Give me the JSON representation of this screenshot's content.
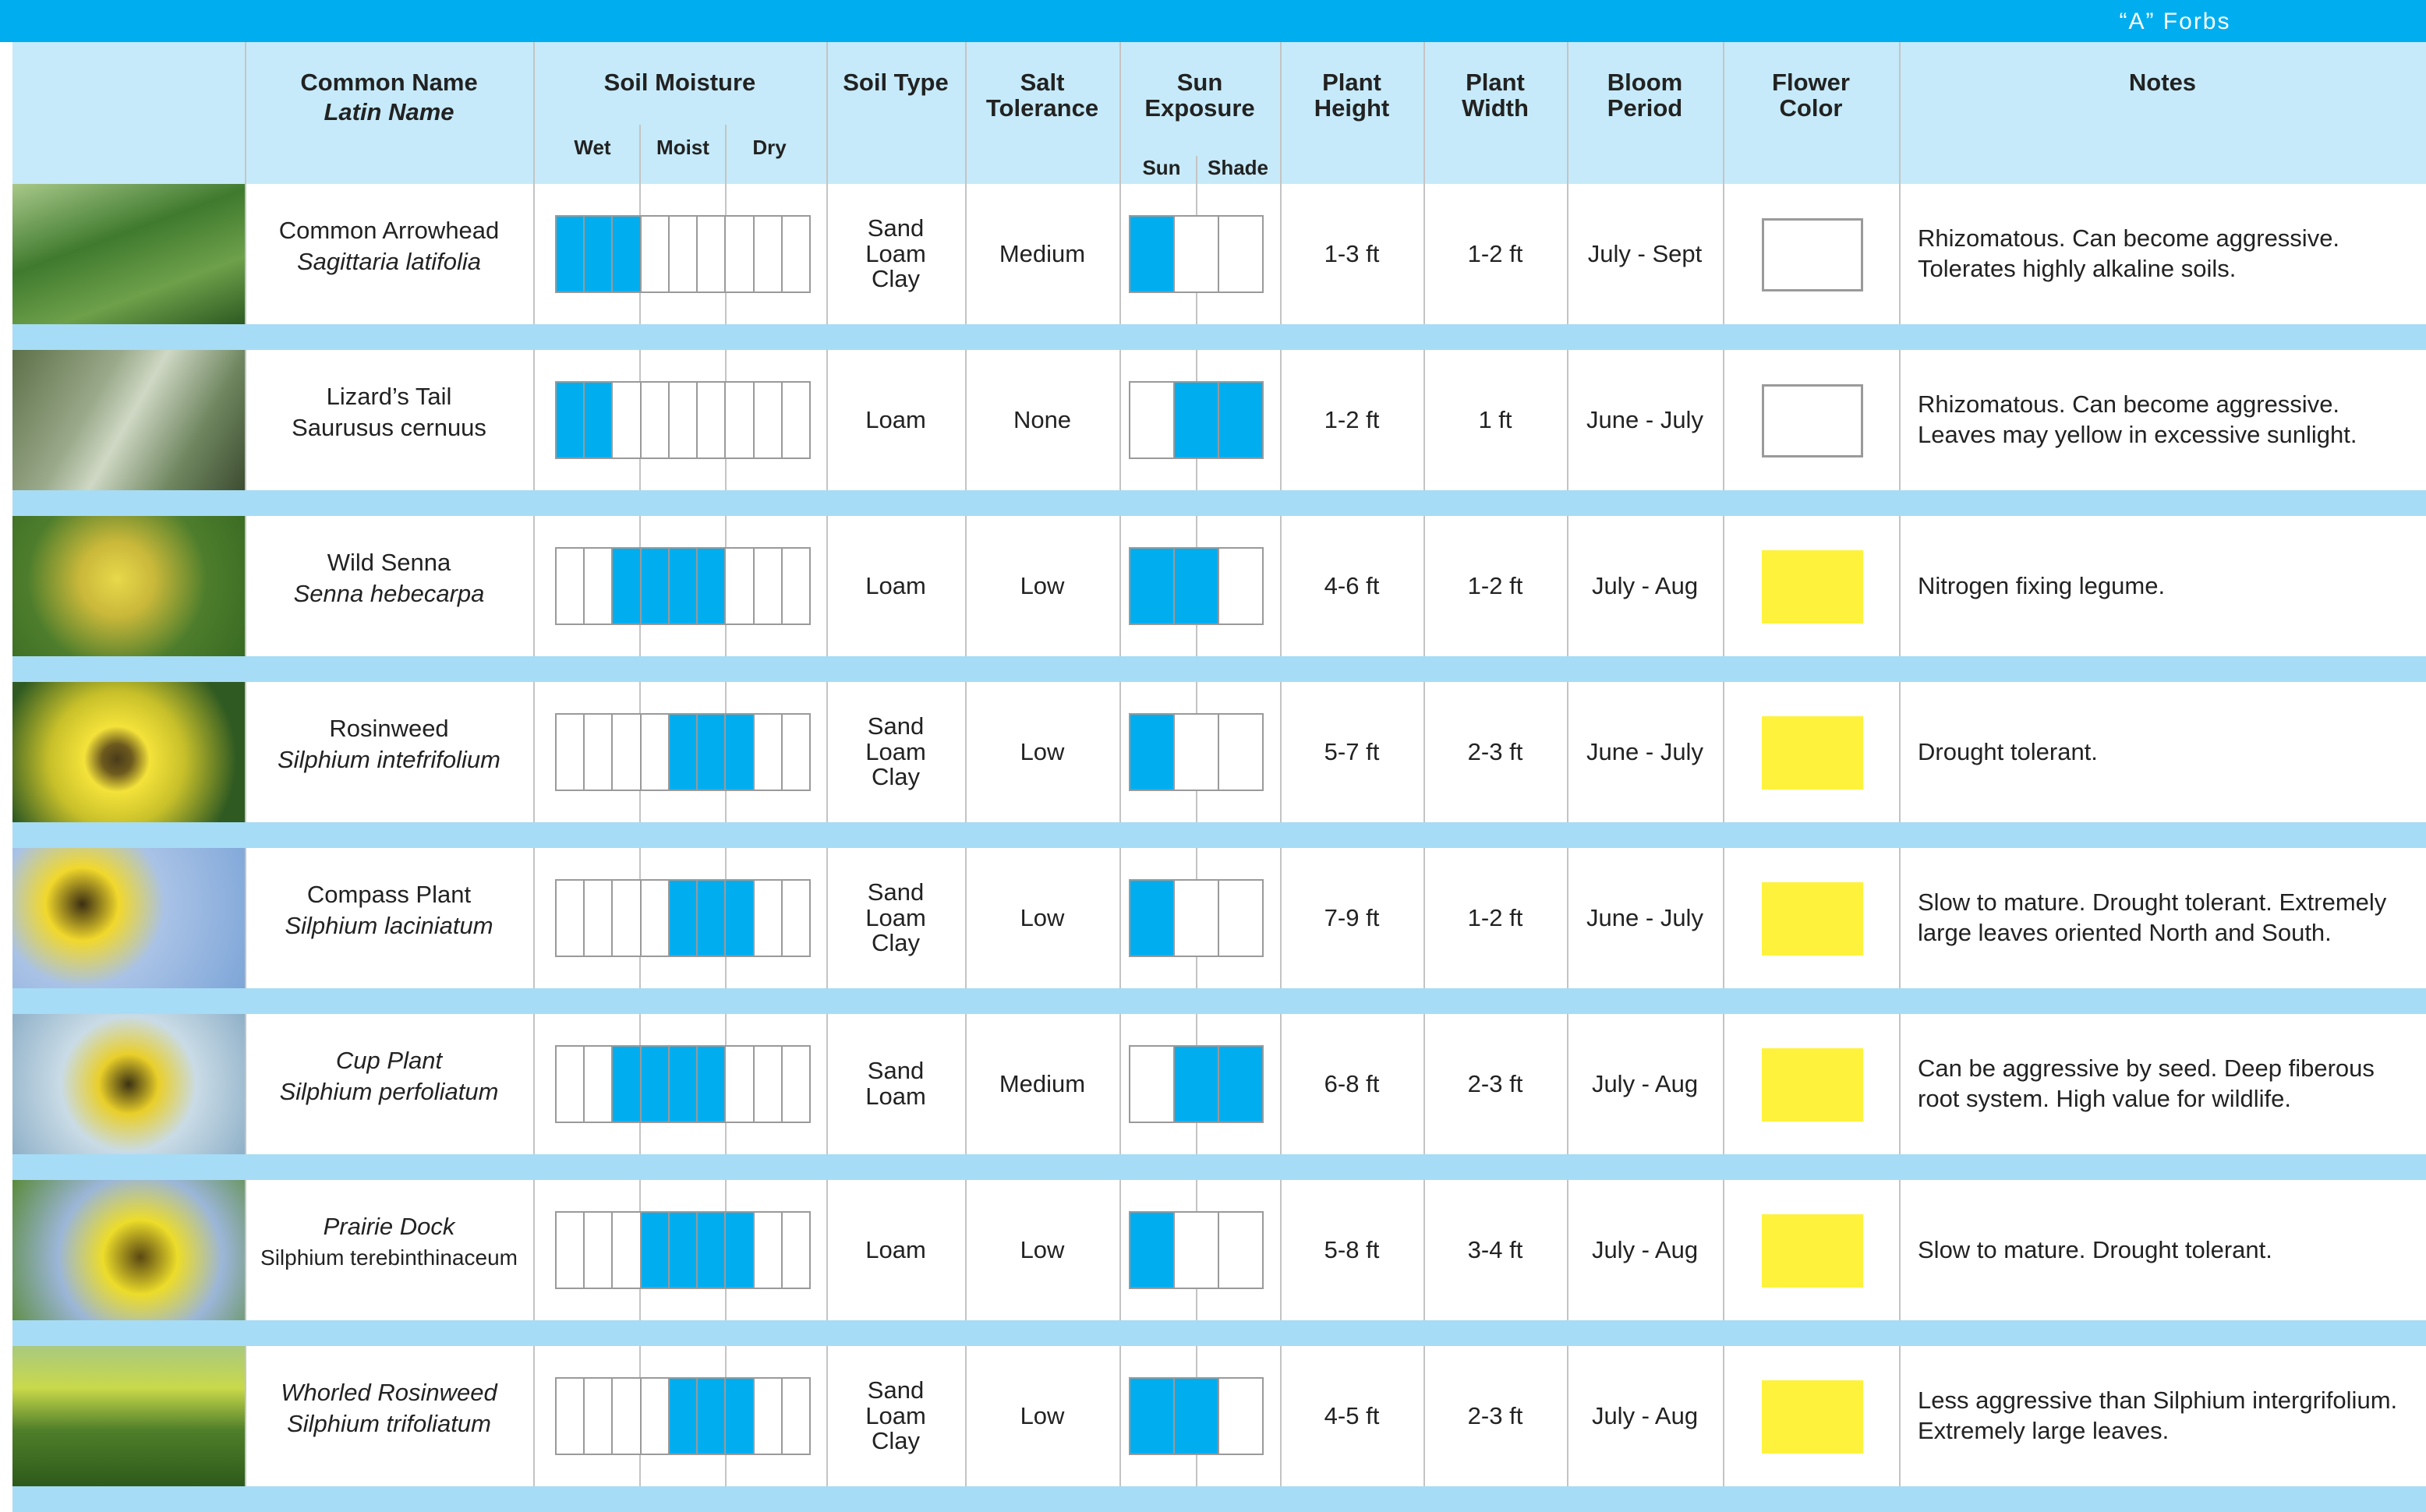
{
  "header": {
    "title": "“A” Forbs"
  },
  "columns": {
    "common_name": "Common Name",
    "latin_name": "Latin Name",
    "soil_moisture": "Soil Moisture",
    "moisture_levels": [
      "Wet",
      "Moist",
      "Dry"
    ],
    "soil_type": "Soil Type",
    "salt_tolerance": "Salt\nTolerance",
    "sun_exposure": "Sun\nExposure",
    "sun_levels": [
      "Sun",
      "Shade"
    ],
    "plant_height": "Plant\nHeight",
    "plant_width": "Plant\nWidth",
    "bloom_period": "Bloom\nPeriod",
    "flower_color": "Flower\nColor",
    "notes": "Notes"
  },
  "rows": [
    {
      "common_name": "Common Arrowhead",
      "latin_name": "Sagittaria latifolia",
      "common_italic": false,
      "latin_italic": true,
      "soil_moisture": [
        1,
        1,
        1,
        0,
        0,
        0,
        0,
        0,
        0
      ],
      "soil_type": "Sand\nLoam\nClay",
      "salt_tolerance": "Medium",
      "sun_exposure": [
        1,
        0,
        0
      ],
      "plant_height": "1-3 ft",
      "plant_width": "1-2 ft",
      "bloom_period": "July - Sept",
      "flower_color": "#ffffff",
      "notes": "Rhizomatous. Can become aggressive. Tolerates highly alkaline soils."
    },
    {
      "common_name": "Lizard’s Tail",
      "latin_name": "Saurusus cernuus",
      "common_italic": false,
      "latin_italic": false,
      "soil_moisture": [
        1,
        1,
        0,
        0,
        0,
        0,
        0,
        0,
        0
      ],
      "soil_type": "Loam",
      "salt_tolerance": "None",
      "sun_exposure": [
        0,
        1,
        1
      ],
      "plant_height": "1-2 ft",
      "plant_width": "1 ft",
      "bloom_period": "June - July",
      "flower_color": "#ffffff",
      "notes": "Rhizomatous. Can become aggressive. Leaves may yellow in excessive sunlight."
    },
    {
      "common_name": "Wild Senna",
      "latin_name": "Senna hebecarpa",
      "common_italic": false,
      "latin_italic": true,
      "soil_moisture": [
        0,
        0,
        1,
        1,
        1,
        1,
        0,
        0,
        0
      ],
      "soil_type": "Loam",
      "salt_tolerance": "Low",
      "sun_exposure": [
        1,
        1,
        0
      ],
      "plant_height": "4-6 ft",
      "plant_width": "1-2 ft",
      "bloom_period": "July - Aug",
      "flower_color": "#fff23c",
      "notes": "Nitrogen fixing legume."
    },
    {
      "common_name": "Rosinweed",
      "latin_name": "Silphium intefrifolium",
      "common_italic": false,
      "latin_italic": true,
      "soil_moisture": [
        0,
        0,
        0,
        0,
        1,
        1,
        1,
        0,
        0
      ],
      "soil_type": "Sand\nLoam\nClay",
      "salt_tolerance": "Low",
      "sun_exposure": [
        1,
        0,
        0
      ],
      "plant_height": "5-7 ft",
      "plant_width": "2-3 ft",
      "bloom_period": "June - July",
      "flower_color": "#fff23c",
      "notes": "Drought tolerant."
    },
    {
      "common_name": "Compass Plant",
      "latin_name": "Silphium laciniatum",
      "common_italic": false,
      "latin_italic": true,
      "soil_moisture": [
        0,
        0,
        0,
        0,
        1,
        1,
        1,
        0,
        0
      ],
      "soil_type": "Sand\nLoam\nClay",
      "salt_tolerance": "Low",
      "sun_exposure": [
        1,
        0,
        0
      ],
      "plant_height": "7-9 ft",
      "plant_width": "1-2 ft",
      "bloom_period": "June - July",
      "flower_color": "#fff23c",
      "notes": "Slow to mature. Drought tolerant. Extremely large leaves oriented North and South."
    },
    {
      "common_name": "Cup Plant",
      "latin_name": "Silphium perfoliatum",
      "common_italic": true,
      "latin_italic": true,
      "soil_moisture": [
        0,
        0,
        1,
        1,
        1,
        1,
        0,
        0,
        0
      ],
      "soil_type": "Sand\nLoam",
      "salt_tolerance": "Medium",
      "sun_exposure": [
        0,
        1,
        1
      ],
      "plant_height": "6-8 ft",
      "plant_width": "2-3 ft",
      "bloom_period": "July - Aug",
      "flower_color": "#fff23c",
      "notes": "Can be aggressive by seed. Deep fiberous root system. High value for wildlife."
    },
    {
      "common_name": "Prairie Dock",
      "latin_name": "Silphium terebinthinaceum",
      "common_italic": true,
      "latin_italic": false,
      "soil_moisture": [
        0,
        0,
        0,
        1,
        1,
        1,
        1,
        0,
        0
      ],
      "soil_type": "Loam",
      "salt_tolerance": "Low",
      "sun_exposure": [
        1,
        0,
        0
      ],
      "plant_height": "5-8 ft",
      "plant_width": "3-4 ft",
      "bloom_period": "July - Aug",
      "flower_color": "#fff23c",
      "notes": "Slow to mature. Drought tolerant."
    },
    {
      "common_name": "Whorled Rosinweed",
      "latin_name": "Silphium trifoliatum",
      "common_italic": true,
      "latin_italic": true,
      "soil_moisture": [
        0,
        0,
        0,
        0,
        1,
        1,
        1,
        0,
        0
      ],
      "soil_type": "Sand\nLoam\nClay",
      "salt_tolerance": "Low",
      "sun_exposure": [
        1,
        1,
        0
      ],
      "plant_height": "4-5 ft",
      "plant_width": "2-3 ft",
      "bloom_period": "July - Aug",
      "flower_color": "#fff23c",
      "notes": "Less aggressive than Silphium intergrifolium. Extremely large leaves."
    }
  ]
}
